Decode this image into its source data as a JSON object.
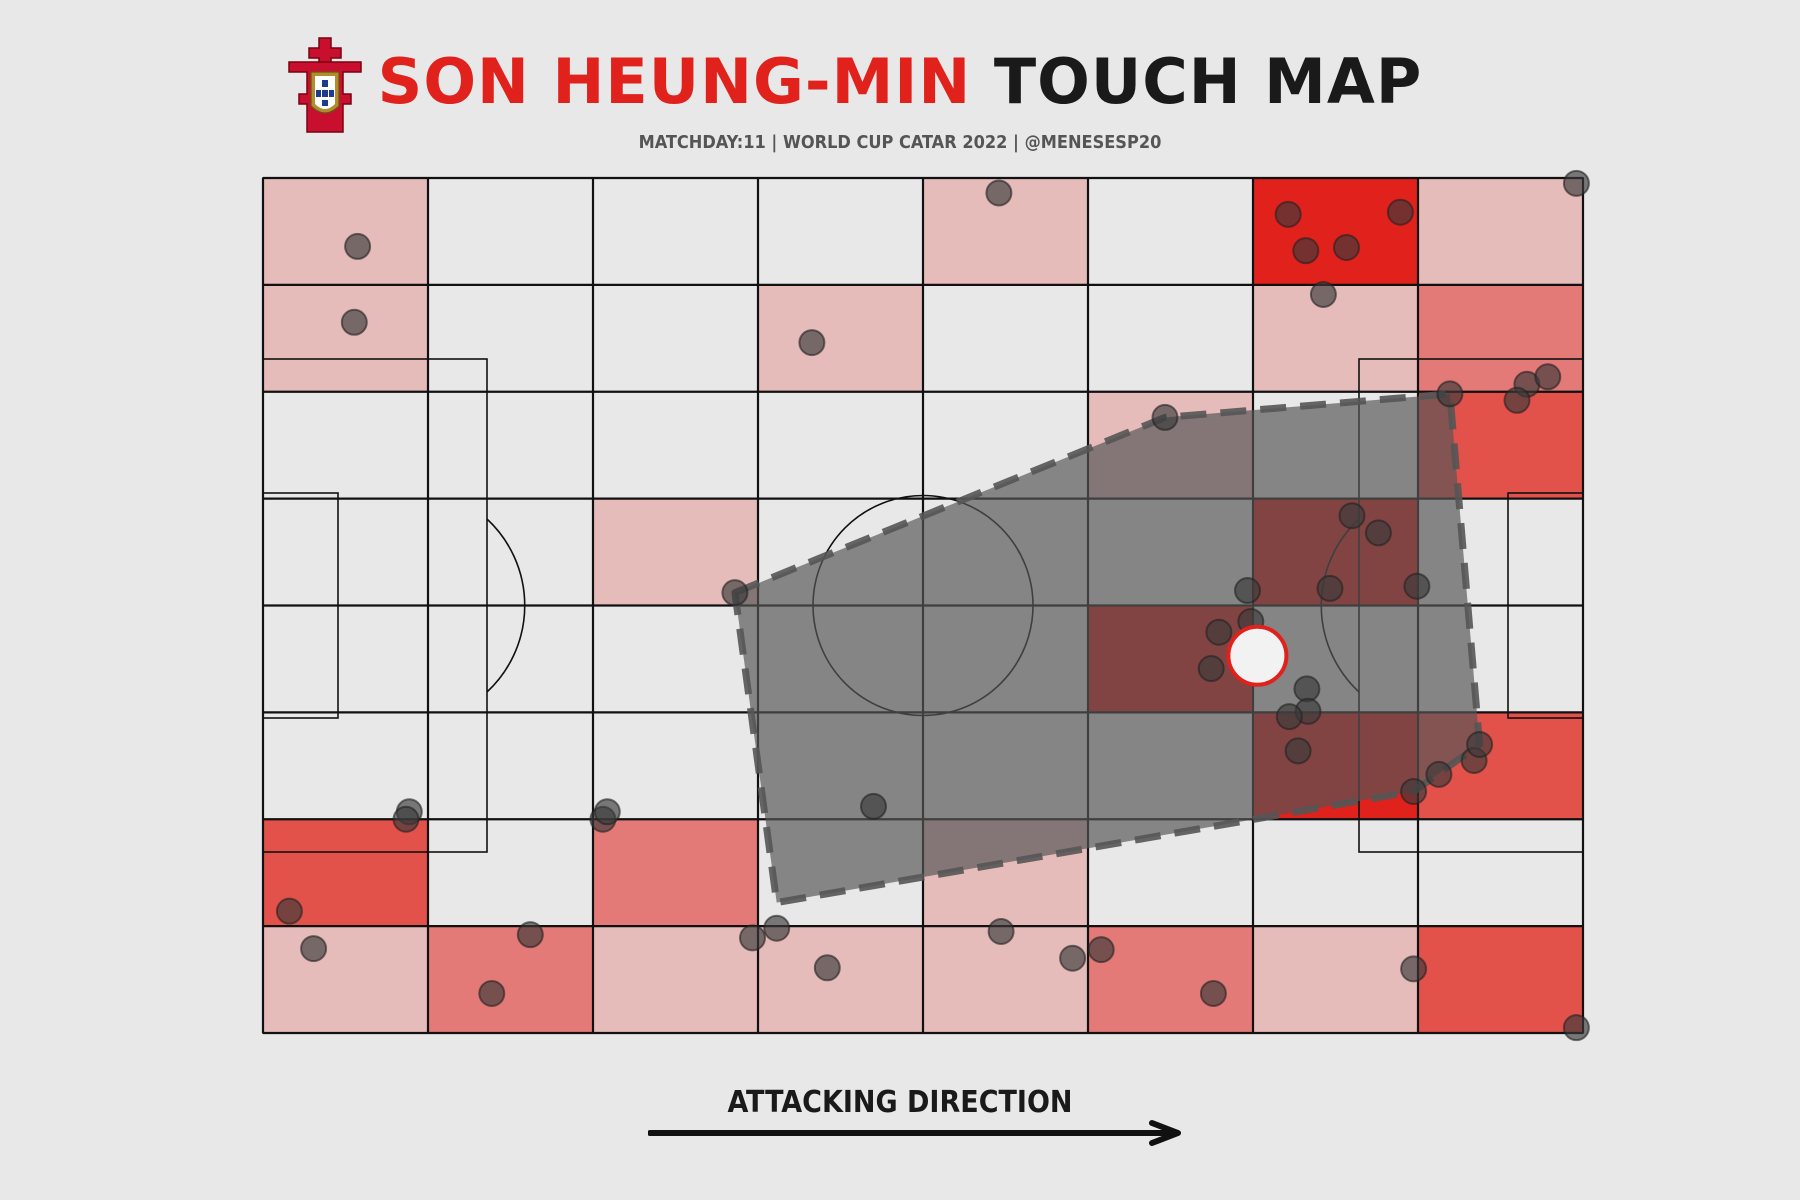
{
  "title": {
    "name": "SON HEUNG-MIN",
    "rest": "TOUCH MAP"
  },
  "subtitle": "MATCHDAY:11 | WORLD CUP CATAR 2022 | @MENESESP20",
  "logo": {
    "icon": "portugal-fpf-crest-icon"
  },
  "direction_label": "ATTACKING DIRECTION",
  "colors": {
    "background": "#e8e8e8",
    "line": "#111111",
    "heat_level_1": "#e6bcbb",
    "heat_level_2": "#e47a77",
    "heat_level_3": "#e3514b",
    "heat_level_4": "#e1211b",
    "hull": "#555555",
    "touch": "#3a3a3a",
    "avg_marker": "#e1211b"
  },
  "chart_data": {
    "type": "heatmap",
    "pitch": {
      "length": 120,
      "width": 80,
      "grid": [
        8,
        8
      ]
    },
    "bins": [
      [
        1,
        0,
        0,
        0,
        1,
        0,
        4,
        1
      ],
      [
        1,
        0,
        0,
        1,
        0,
        0,
        1,
        2
      ],
      [
        0,
        0,
        0,
        0,
        0,
        1,
        0,
        3
      ],
      [
        0,
        0,
        1,
        0,
        0,
        0,
        4,
        0
      ],
      [
        0,
        0,
        0,
        0,
        0,
        4,
        0,
        0
      ],
      [
        0,
        0,
        0,
        0,
        0,
        0,
        4,
        3
      ],
      [
        3,
        0,
        2,
        0,
        1,
        0,
        0,
        0
      ],
      [
        1,
        2,
        1,
        1,
        1,
        2,
        1,
        3
      ]
    ],
    "touches": [
      [
        8.6,
        6.4
      ],
      [
        8.3,
        13.5
      ],
      [
        66.9,
        1.4
      ],
      [
        93.2,
        3.4
      ],
      [
        94.8,
        6.8
      ],
      [
        98.5,
        6.5
      ],
      [
        103.4,
        3.2
      ],
      [
        96.4,
        10.9
      ],
      [
        49.9,
        15.4
      ],
      [
        114.9,
        19.3
      ],
      [
        116.8,
        18.6
      ],
      [
        114.0,
        20.8
      ],
      [
        82.0,
        22.4
      ],
      [
        107.9,
        20.2
      ],
      [
        99.0,
        31.6
      ],
      [
        101.4,
        33.2
      ],
      [
        104.9,
        38.2
      ],
      [
        97.0,
        38.4
      ],
      [
        89.5,
        38.6
      ],
      [
        89.5,
        45.5
      ],
      [
        89.8,
        41.5
      ],
      [
        86.9,
        42.5
      ],
      [
        86.2,
        45.9
      ],
      [
        94.9,
        47.8
      ],
      [
        95.0,
        49.9
      ],
      [
        93.3,
        50.4
      ],
      [
        94.1,
        53.6
      ],
      [
        110.1,
        54.5
      ],
      [
        110.6,
        53.0
      ],
      [
        106.9,
        55.8
      ],
      [
        104.6,
        57.4
      ],
      [
        42.9,
        38.8
      ],
      [
        55.5,
        58.8
      ],
      [
        13.3,
        59.3
      ],
      [
        13.0,
        60.0
      ],
      [
        30.9,
        60.0
      ],
      [
        31.3,
        59.3
      ],
      [
        2.4,
        68.6
      ],
      [
        4.6,
        72.1
      ],
      [
        24.3,
        70.8
      ],
      [
        20.8,
        76.3
      ],
      [
        44.5,
        71.1
      ],
      [
        46.7,
        70.2
      ],
      [
        51.3,
        73.9
      ],
      [
        67.1,
        70.5
      ],
      [
        73.6,
        73.0
      ],
      [
        76.2,
        72.2
      ],
      [
        86.4,
        76.3
      ],
      [
        104.6,
        74.0
      ],
      [
        119.4,
        0.5
      ],
      [
        119.4,
        79.5
      ]
    ],
    "hull": [
      [
        42.9,
        38.8
      ],
      [
        82.0,
        22.4
      ],
      [
        107.9,
        20.2
      ],
      [
        110.6,
        53.0
      ],
      [
        104.6,
        57.4
      ],
      [
        46.7,
        67.8
      ]
    ],
    "average_position": [
      90.4,
      44.7
    ]
  }
}
